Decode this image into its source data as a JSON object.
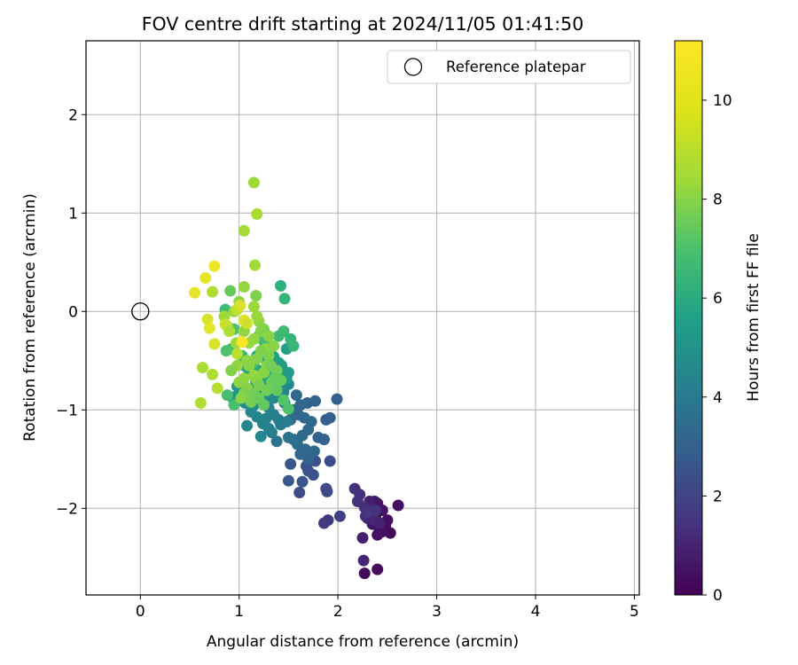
{
  "chart_data": {
    "type": "scatter",
    "title": "FOV centre drift starting at 2024/11/05 01:41:50",
    "xlabel": "Angular distance from reference (arcmin)",
    "ylabel": "Rotation from reference (arcmin)",
    "xlim": [
      -0.55,
      5.05
    ],
    "ylim": [
      -2.88,
      2.75
    ],
    "xticks": [
      0,
      1,
      2,
      3,
      4,
      5
    ],
    "yticks": [
      -2,
      -1,
      0,
      1,
      2
    ],
    "grid": true,
    "legend": {
      "position": "top-right",
      "entries": [
        "Reference platepar"
      ]
    },
    "reference_point": {
      "x": 0,
      "y": 0,
      "label": "Reference platepar"
    },
    "colorbar": {
      "label": "Hours from first FF file",
      "range": [
        0,
        11.2
      ],
      "ticks": [
        0,
        2,
        4,
        6,
        8,
        10
      ],
      "colormap": "viridis"
    },
    "series": [
      {
        "points": [
          [
            2.37,
            -1.93
          ],
          [
            2.4,
            -1.95
          ],
          [
            2.61,
            -1.97
          ],
          [
            2.35,
            -2.0
          ],
          [
            2.45,
            -2.02
          ],
          [
            2.3,
            -2.05
          ],
          [
            2.38,
            -2.08
          ],
          [
            2.5,
            -2.12
          ],
          [
            2.35,
            -2.16
          ],
          [
            2.48,
            -2.18
          ],
          [
            2.42,
            -2.2
          ],
          [
            2.53,
            -2.25
          ],
          [
            2.4,
            -2.27
          ],
          [
            2.25,
            -2.3
          ],
          [
            2.4,
            -2.62
          ],
          [
            2.27,
            -2.66
          ],
          [
            2.26,
            -2.53
          ],
          [
            2.32,
            -1.93
          ],
          [
            2.3,
            -2.1
          ],
          [
            2.44,
            -2.24
          ],
          [
            2.17,
            -1.8
          ],
          [
            2.22,
            -1.86
          ],
          [
            2.2,
            -1.93
          ],
          [
            2.28,
            -2.08
          ],
          [
            2.33,
            -2.04
          ],
          [
            2.36,
            -2.12
          ],
          [
            2.27,
            -1.99
          ],
          [
            2.42,
            -2.15
          ],
          [
            1.86,
            -2.15
          ],
          [
            1.9,
            -2.12
          ],
          [
            2.02,
            -2.08
          ],
          [
            2.3,
            -2.04
          ],
          [
            2.38,
            -2.02
          ],
          [
            1.88,
            -1.8
          ],
          [
            1.92,
            -1.52
          ],
          [
            1.77,
            -1.52
          ],
          [
            1.68,
            -1.57
          ],
          [
            1.7,
            -1.62
          ],
          [
            1.75,
            -1.66
          ],
          [
            1.64,
            -1.73
          ],
          [
            1.5,
            -1.72
          ],
          [
            1.61,
            -1.84
          ],
          [
            1.89,
            -1.83
          ],
          [
            1.52,
            -1.55
          ],
          [
            1.99,
            -0.89
          ],
          [
            1.77,
            -0.91
          ],
          [
            1.69,
            -0.93
          ],
          [
            1.62,
            -0.95
          ],
          [
            1.55,
            -1.0
          ],
          [
            1.6,
            -1.05
          ],
          [
            1.66,
            -1.08
          ],
          [
            1.73,
            -1.12
          ],
          [
            1.88,
            -1.1
          ],
          [
            1.92,
            -1.08
          ],
          [
            1.7,
            -1.2
          ],
          [
            1.64,
            -1.26
          ],
          [
            1.8,
            -1.28
          ],
          [
            1.86,
            -1.3
          ],
          [
            1.59,
            -1.35
          ],
          [
            1.67,
            -1.4
          ],
          [
            1.76,
            -1.42
          ],
          [
            1.55,
            -1.3
          ],
          [
            1.5,
            -1.28
          ],
          [
            1.62,
            -1.45
          ],
          [
            1.7,
            -1.5
          ],
          [
            1.58,
            -0.85
          ],
          [
            1.52,
            -1.1
          ],
          [
            1.22,
            -1.27
          ],
          [
            1.08,
            -1.16
          ],
          [
            1.3,
            -1.19
          ],
          [
            1.35,
            -1.05
          ],
          [
            1.4,
            -1.1
          ],
          [
            1.42,
            -1.15
          ],
          [
            1.27,
            -1.09
          ],
          [
            1.18,
            -1.07
          ],
          [
            1.12,
            -1.02
          ],
          [
            1.48,
            -1.12
          ],
          [
            1.38,
            -1.32
          ],
          [
            1.46,
            -0.93
          ],
          [
            1.3,
            -0.98
          ],
          [
            1.24,
            -1.14
          ],
          [
            1.33,
            -1.23
          ],
          [
            1.0,
            -0.84
          ],
          [
            1.05,
            -0.76
          ],
          [
            1.1,
            -0.8
          ],
          [
            1.2,
            -0.85
          ],
          [
            1.25,
            -0.9
          ],
          [
            1.15,
            -0.95
          ],
          [
            1.35,
            -0.88
          ],
          [
            1.45,
            -0.82
          ],
          [
            1.4,
            -0.78
          ],
          [
            1.3,
            -0.74
          ],
          [
            1.5,
            -0.74
          ],
          [
            1.22,
            -0.7
          ],
          [
            1.12,
            -0.88
          ],
          [
            1.06,
            -0.93
          ],
          [
            0.93,
            -0.87
          ],
          [
            0.98,
            -0.76
          ],
          [
            1.17,
            -0.72
          ],
          [
            1.38,
            -0.68
          ],
          [
            1.27,
            -0.82
          ],
          [
            1.2,
            -0.6
          ],
          [
            1.3,
            -0.58
          ],
          [
            1.4,
            -0.52
          ],
          [
            1.48,
            -0.38
          ],
          [
            1.5,
            -0.62
          ],
          [
            1.25,
            -0.68
          ],
          [
            1.1,
            -0.62
          ],
          [
            1.05,
            -0.55
          ],
          [
            1.35,
            -0.46
          ],
          [
            1.45,
            -0.65
          ],
          [
            1.18,
            -0.45
          ],
          [
            1.28,
            -0.5
          ],
          [
            1.32,
            -0.62
          ],
          [
            1.48,
            -0.68
          ],
          [
            1.43,
            -0.55
          ],
          [
            1.42,
            0.26
          ],
          [
            1.46,
            0.13
          ],
          [
            1.52,
            -0.28
          ],
          [
            1.55,
            -0.35
          ],
          [
            1.45,
            -0.2
          ],
          [
            1.4,
            -0.25
          ],
          [
            1.2,
            -0.25
          ],
          [
            1.25,
            -0.3
          ],
          [
            1.3,
            -0.4
          ],
          [
            0.86,
            0.02
          ],
          [
            0.92,
            -0.38
          ],
          [
            0.88,
            -0.85
          ],
          [
            0.95,
            -0.95
          ],
          [
            1.5,
            -0.99
          ],
          [
            1.35,
            -0.64
          ],
          [
            1.15,
            -0.52
          ],
          [
            0.95,
            -0.18
          ],
          [
            1.03,
            -0.45
          ],
          [
            0.87,
            -0.4
          ],
          [
            1.15,
            1.31
          ],
          [
            1.18,
            0.99
          ],
          [
            1.05,
            0.82
          ],
          [
            1.16,
            0.47
          ],
          [
            0.91,
            0.21
          ],
          [
            1.05,
            0.25
          ],
          [
            1.17,
            0.16
          ],
          [
            1.0,
            0.1
          ],
          [
            0.95,
            0.0
          ],
          [
            0.85,
            -0.05
          ],
          [
            0.88,
            -0.15
          ],
          [
            1.25,
            -0.18
          ],
          [
            1.2,
            -0.1
          ],
          [
            1.22,
            -0.2
          ],
          [
            1.3,
            -0.25
          ],
          [
            1.05,
            -0.2
          ],
          [
            1.1,
            -0.32
          ],
          [
            0.97,
            -0.32
          ],
          [
            1.27,
            -0.38
          ],
          [
            1.35,
            -0.35
          ],
          [
            1.18,
            -0.48
          ],
          [
            1.08,
            -0.5
          ],
          [
            0.98,
            -0.55
          ],
          [
            1.28,
            -0.55
          ],
          [
            1.3,
            -0.45
          ],
          [
            1.15,
            -0.65
          ],
          [
            1.25,
            -0.62
          ],
          [
            1.38,
            -0.6
          ],
          [
            1.42,
            -0.7
          ],
          [
            1.33,
            -0.72
          ],
          [
            1.18,
            -0.7
          ],
          [
            1.05,
            -0.68
          ],
          [
            0.92,
            -0.6
          ],
          [
            1.0,
            -0.72
          ],
          [
            1.08,
            -0.78
          ],
          [
            1.2,
            -0.75
          ],
          [
            1.28,
            -0.8
          ],
          [
            1.38,
            -0.8
          ],
          [
            1.15,
            -0.84
          ],
          [
            1.05,
            -0.83
          ],
          [
            1.02,
            -0.88
          ],
          [
            1.12,
            -0.92
          ],
          [
            1.2,
            -0.88
          ],
          [
            1.25,
            -0.95
          ],
          [
            1.45,
            -0.9
          ],
          [
            1.1,
            -0.55
          ],
          [
            1.15,
            -0.28
          ],
          [
            1.15,
            0.05
          ],
          [
            1.18,
            -0.05
          ],
          [
            1.22,
            -0.4
          ],
          [
            1.32,
            -0.55
          ],
          [
            1.36,
            -0.68
          ],
          [
            0.55,
            0.19
          ],
          [
            0.66,
            0.34
          ],
          [
            0.75,
            0.46
          ],
          [
            0.73,
            0.2
          ],
          [
            0.68,
            -0.08
          ],
          [
            0.7,
            -0.17
          ],
          [
            0.75,
            -0.33
          ],
          [
            0.86,
            -0.13
          ],
          [
            0.9,
            -0.2
          ],
          [
            0.63,
            -0.57
          ],
          [
            0.73,
            -0.64
          ],
          [
            0.78,
            -0.78
          ],
          [
            0.61,
            -0.93
          ],
          [
            0.98,
            0.02
          ],
          [
            1.01,
            0.06
          ],
          [
            1.05,
            -0.09
          ],
          [
            1.03,
            -0.31
          ],
          [
            1.08,
            -0.12
          ],
          [
            0.98,
            -0.43
          ]
        ],
        "hours": [
          0.6,
          0.6,
          0.5,
          0.7,
          0.6,
          0.7,
          0.5,
          0.4,
          0.6,
          0.4,
          0.5,
          0.3,
          0.4,
          1.0,
          0.3,
          0.3,
          1.2,
          1.0,
          0.8,
          0.5,
          1.6,
          1.5,
          1.7,
          1.4,
          1.3,
          1.2,
          1.5,
          1.1,
          2.0,
          1.9,
          2.1,
          1.8,
          1.7,
          2.6,
          2.7,
          2.8,
          2.8,
          2.9,
          2.9,
          3.0,
          3.1,
          2.6,
          2.5,
          3.0,
          3.5,
          3.6,
          3.6,
          3.7,
          3.7,
          3.8,
          3.8,
          3.9,
          3.4,
          3.4,
          3.9,
          3.9,
          3.5,
          3.5,
          4.0,
          4.0,
          3.8,
          4.1,
          4.2,
          3.7,
          3.6,
          3.9,
          4.0,
          5.2,
          5.2,
          5.0,
          4.8,
          4.7,
          4.6,
          5.0,
          5.1,
          5.2,
          4.7,
          4.3,
          4.7,
          5.0,
          5.0,
          4.8,
          5.6,
          5.7,
          5.6,
          5.5,
          5.4,
          5.5,
          5.3,
          5.2,
          5.4,
          5.5,
          5.3,
          5.6,
          5.7,
          5.6,
          5.8,
          5.8,
          5.6,
          5.6,
          5.5,
          6.4,
          6.3,
          6.5,
          6.3,
          6.2,
          6.5,
          6.4,
          6.6,
          6.3,
          6.2,
          6.7,
          6.4,
          6.5,
          6.1,
          6.2,
          7.2,
          7.4,
          7.4,
          7.5,
          7.6,
          7.6,
          7.8,
          7.7,
          7.6,
          7.6,
          7.8,
          7.8,
          7.9,
          8.0,
          7.1,
          7.8,
          8.0,
          7.6,
          8.0,
          9.6,
          9.8,
          9.7,
          9.7,
          8.6,
          9.4,
          9.0,
          9.3,
          9.5,
          9.6,
          9.5,
          9.0,
          9.3,
          9.1,
          9.2,
          9.4,
          9.5,
          9.6,
          9.4,
          9.2,
          9.1,
          9.3,
          9.4,
          9.2,
          9.0,
          9.4,
          9.2,
          8.8,
          8.6,
          8.7,
          9.3,
          9.4,
          9.1,
          9.3,
          9.2,
          8.9,
          8.8,
          8.5,
          8.8,
          9.0,
          9.2,
          8.9,
          8.7,
          8.5,
          8.2,
          9.2,
          9.4,
          9.6,
          9.5,
          9.0,
          8.8,
          8.6,
          10.8,
          10.8,
          11.0,
          9.9,
          10.6,
          10.8,
          10.6,
          10.3,
          9.9,
          9.8,
          9.9,
          10.0,
          9.9,
          10.2,
          10.6,
          10.7,
          11.1,
          10.4,
          10.1
        ]
      }
    ]
  }
}
